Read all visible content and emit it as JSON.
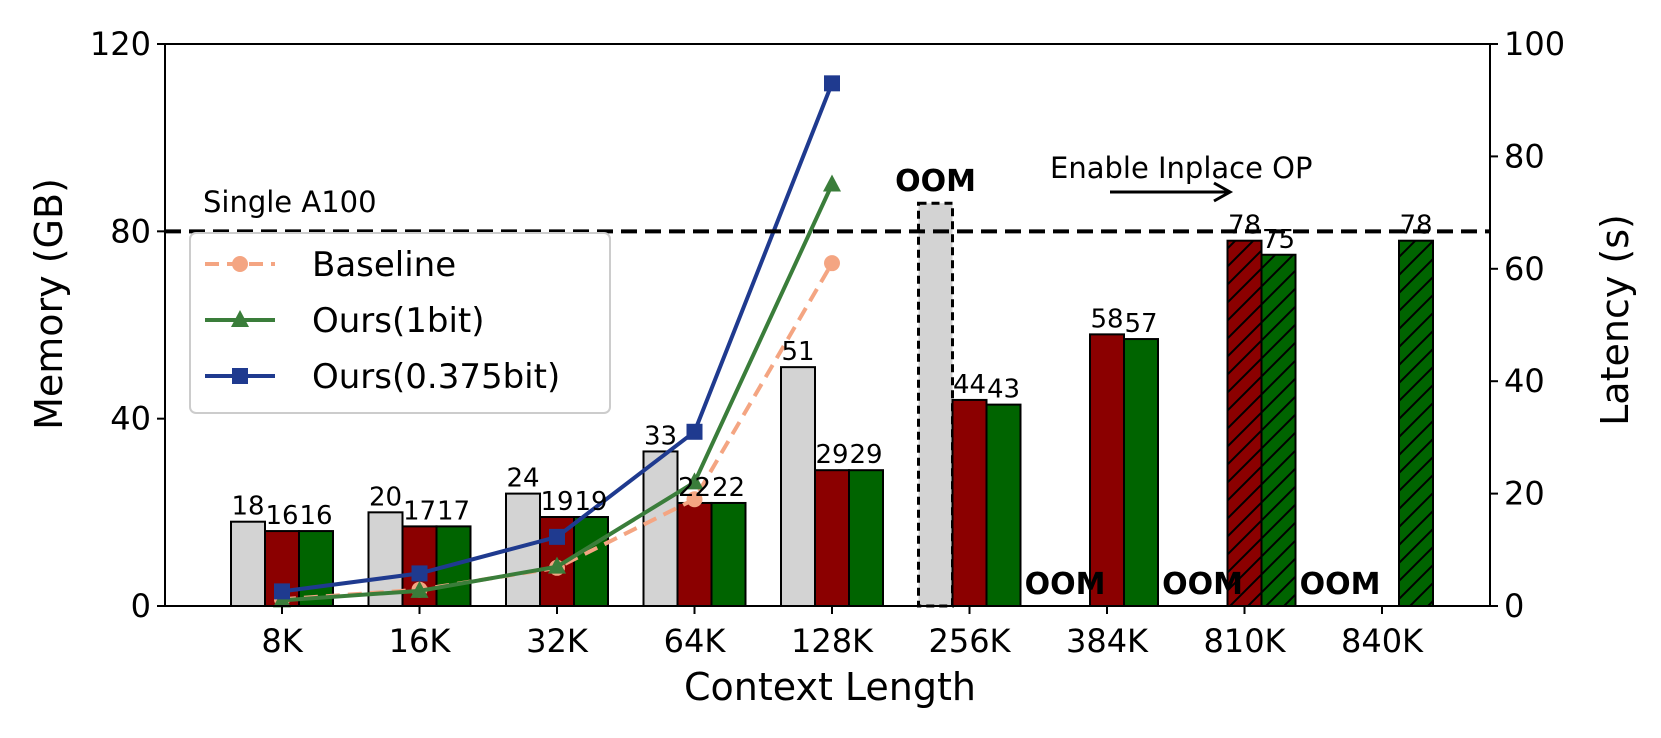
{
  "chart_data": {
    "type": "bar",
    "xlabel": "Context Length",
    "ylabel_left": "Memory (GB)",
    "ylabel_right": "Latency (s)",
    "ylim_left": [
      0,
      120
    ],
    "ylim_right": [
      0,
      100
    ],
    "yticks_left": [
      0,
      40,
      80,
      120
    ],
    "yticks_right": [
      0,
      20,
      40,
      60,
      80,
      100
    ],
    "categories": [
      "8K",
      "16K",
      "32K",
      "64K",
      "128K",
      "256K",
      "384K",
      "810K",
      "840K"
    ],
    "bar_series": [
      {
        "key": "baseline_mem",
        "color": "#d3d3d3",
        "values": [
          18,
          20,
          24,
          33,
          51,
          86,
          null,
          null,
          null
        ],
        "labels": [
          "18",
          "20",
          "24",
          "33",
          "51",
          "",
          "",
          "",
          ""
        ],
        "hatched": [
          false,
          false,
          false,
          false,
          false,
          false,
          false,
          false,
          false
        ],
        "dashed_outline": [
          false,
          false,
          false,
          false,
          false,
          true,
          false,
          false,
          false
        ],
        "oom": [
          false,
          false,
          false,
          false,
          false,
          true,
          true,
          true,
          true
        ]
      },
      {
        "key": "ours1bit_mem",
        "color": "#8b0000",
        "values": [
          16,
          17,
          19,
          22,
          29,
          44,
          58,
          78,
          null
        ],
        "labels": [
          "16",
          "17",
          "19",
          "22",
          "29",
          "44",
          "58",
          "78",
          ""
        ],
        "hatched": [
          false,
          false,
          false,
          false,
          false,
          false,
          false,
          true,
          false
        ],
        "dashed_outline": [
          false,
          false,
          false,
          false,
          false,
          false,
          false,
          false,
          false
        ],
        "oom": [
          false,
          false,
          false,
          false,
          false,
          false,
          false,
          false,
          true
        ]
      },
      {
        "key": "ours0375_mem",
        "color": "#006400",
        "values": [
          16,
          17,
          19,
          22,
          29,
          43,
          57,
          75,
          78
        ],
        "labels": [
          "16",
          "17",
          "19",
          "22",
          "29",
          "43",
          "57",
          "75",
          "78"
        ],
        "hatched": [
          false,
          false,
          false,
          false,
          false,
          false,
          false,
          true,
          true
        ],
        "dashed_outline": [
          false,
          false,
          false,
          false,
          false,
          false,
          false,
          false,
          false
        ],
        "oom": [
          false,
          false,
          false,
          false,
          false,
          false,
          false,
          false,
          false
        ]
      }
    ],
    "oom_text": "OOM",
    "oom_labels": [
      {
        "category": "256K",
        "text": "OOM"
      },
      {
        "category": "384K",
        "text": "OOM"
      },
      {
        "category": "810K",
        "text": "OOM"
      },
      {
        "category": "840K",
        "text": "OOM"
      }
    ],
    "line_series": [
      {
        "name": "Baseline",
        "color": "#f4a582",
        "marker": "circle",
        "dashed": true,
        "values": [
          1.2,
          2.9,
          6.8,
          19.0,
          61.0
        ]
      },
      {
        "name": "Ours(1bit)",
        "color": "#3a7d3a",
        "marker": "triangle",
        "dashed": false,
        "values": [
          1.0,
          2.7,
          7.0,
          22.0,
          75.0
        ]
      },
      {
        "name": "Ours(0.375bit)",
        "color": "#1f3a8f",
        "marker": "square",
        "dashed": false,
        "values": [
          2.6,
          5.8,
          12.3,
          31.0,
          93.0
        ]
      }
    ],
    "reference_line": {
      "label": "Single A100",
      "value": 80
    },
    "annotation": {
      "text": "Enable Inplace OP"
    },
    "legend_position": "upper-left",
    "grid": false
  }
}
